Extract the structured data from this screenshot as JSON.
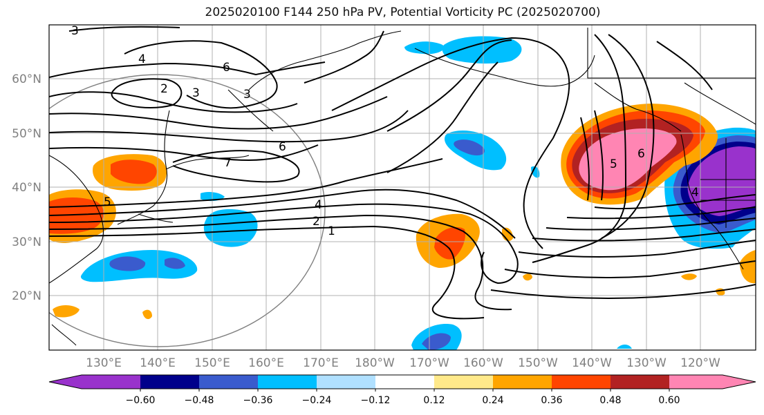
{
  "title": "2025020100 F144 250 hPa PV, Potential Vorticity PC (2025020700)",
  "lat_labels": [
    "60°N",
    "50°N",
    "40°N",
    "30°N",
    "20°N"
  ],
  "lon_labels": [
    "130°E",
    "140°E",
    "150°E",
    "160°E",
    "170°E",
    "180°W",
    "170°W",
    "160°W",
    "150°W",
    "140°W",
    "130°W",
    "120°W"
  ],
  "colorbar": {
    "tick_labels": [
      "−0.60",
      "−0.48",
      "−0.36",
      "−0.24",
      "−0.12",
      "0.12",
      "0.24",
      "0.36",
      "0.48",
      "0.60"
    ],
    "colors": [
      "#9932cc",
      "#00008b",
      "#3a5bcd",
      "#00bfff",
      "#b0e0ff",
      "#ffffff",
      "#ffe98a",
      "#ffa500",
      "#ff4500",
      "#b22222",
      "#ff85b3"
    ]
  },
  "contour_labels": [
    "3",
    "4",
    "6",
    "2",
    "3",
    "3",
    "6",
    "7",
    "5",
    "4",
    "2",
    "1",
    "5",
    "6",
    "4"
  ]
}
